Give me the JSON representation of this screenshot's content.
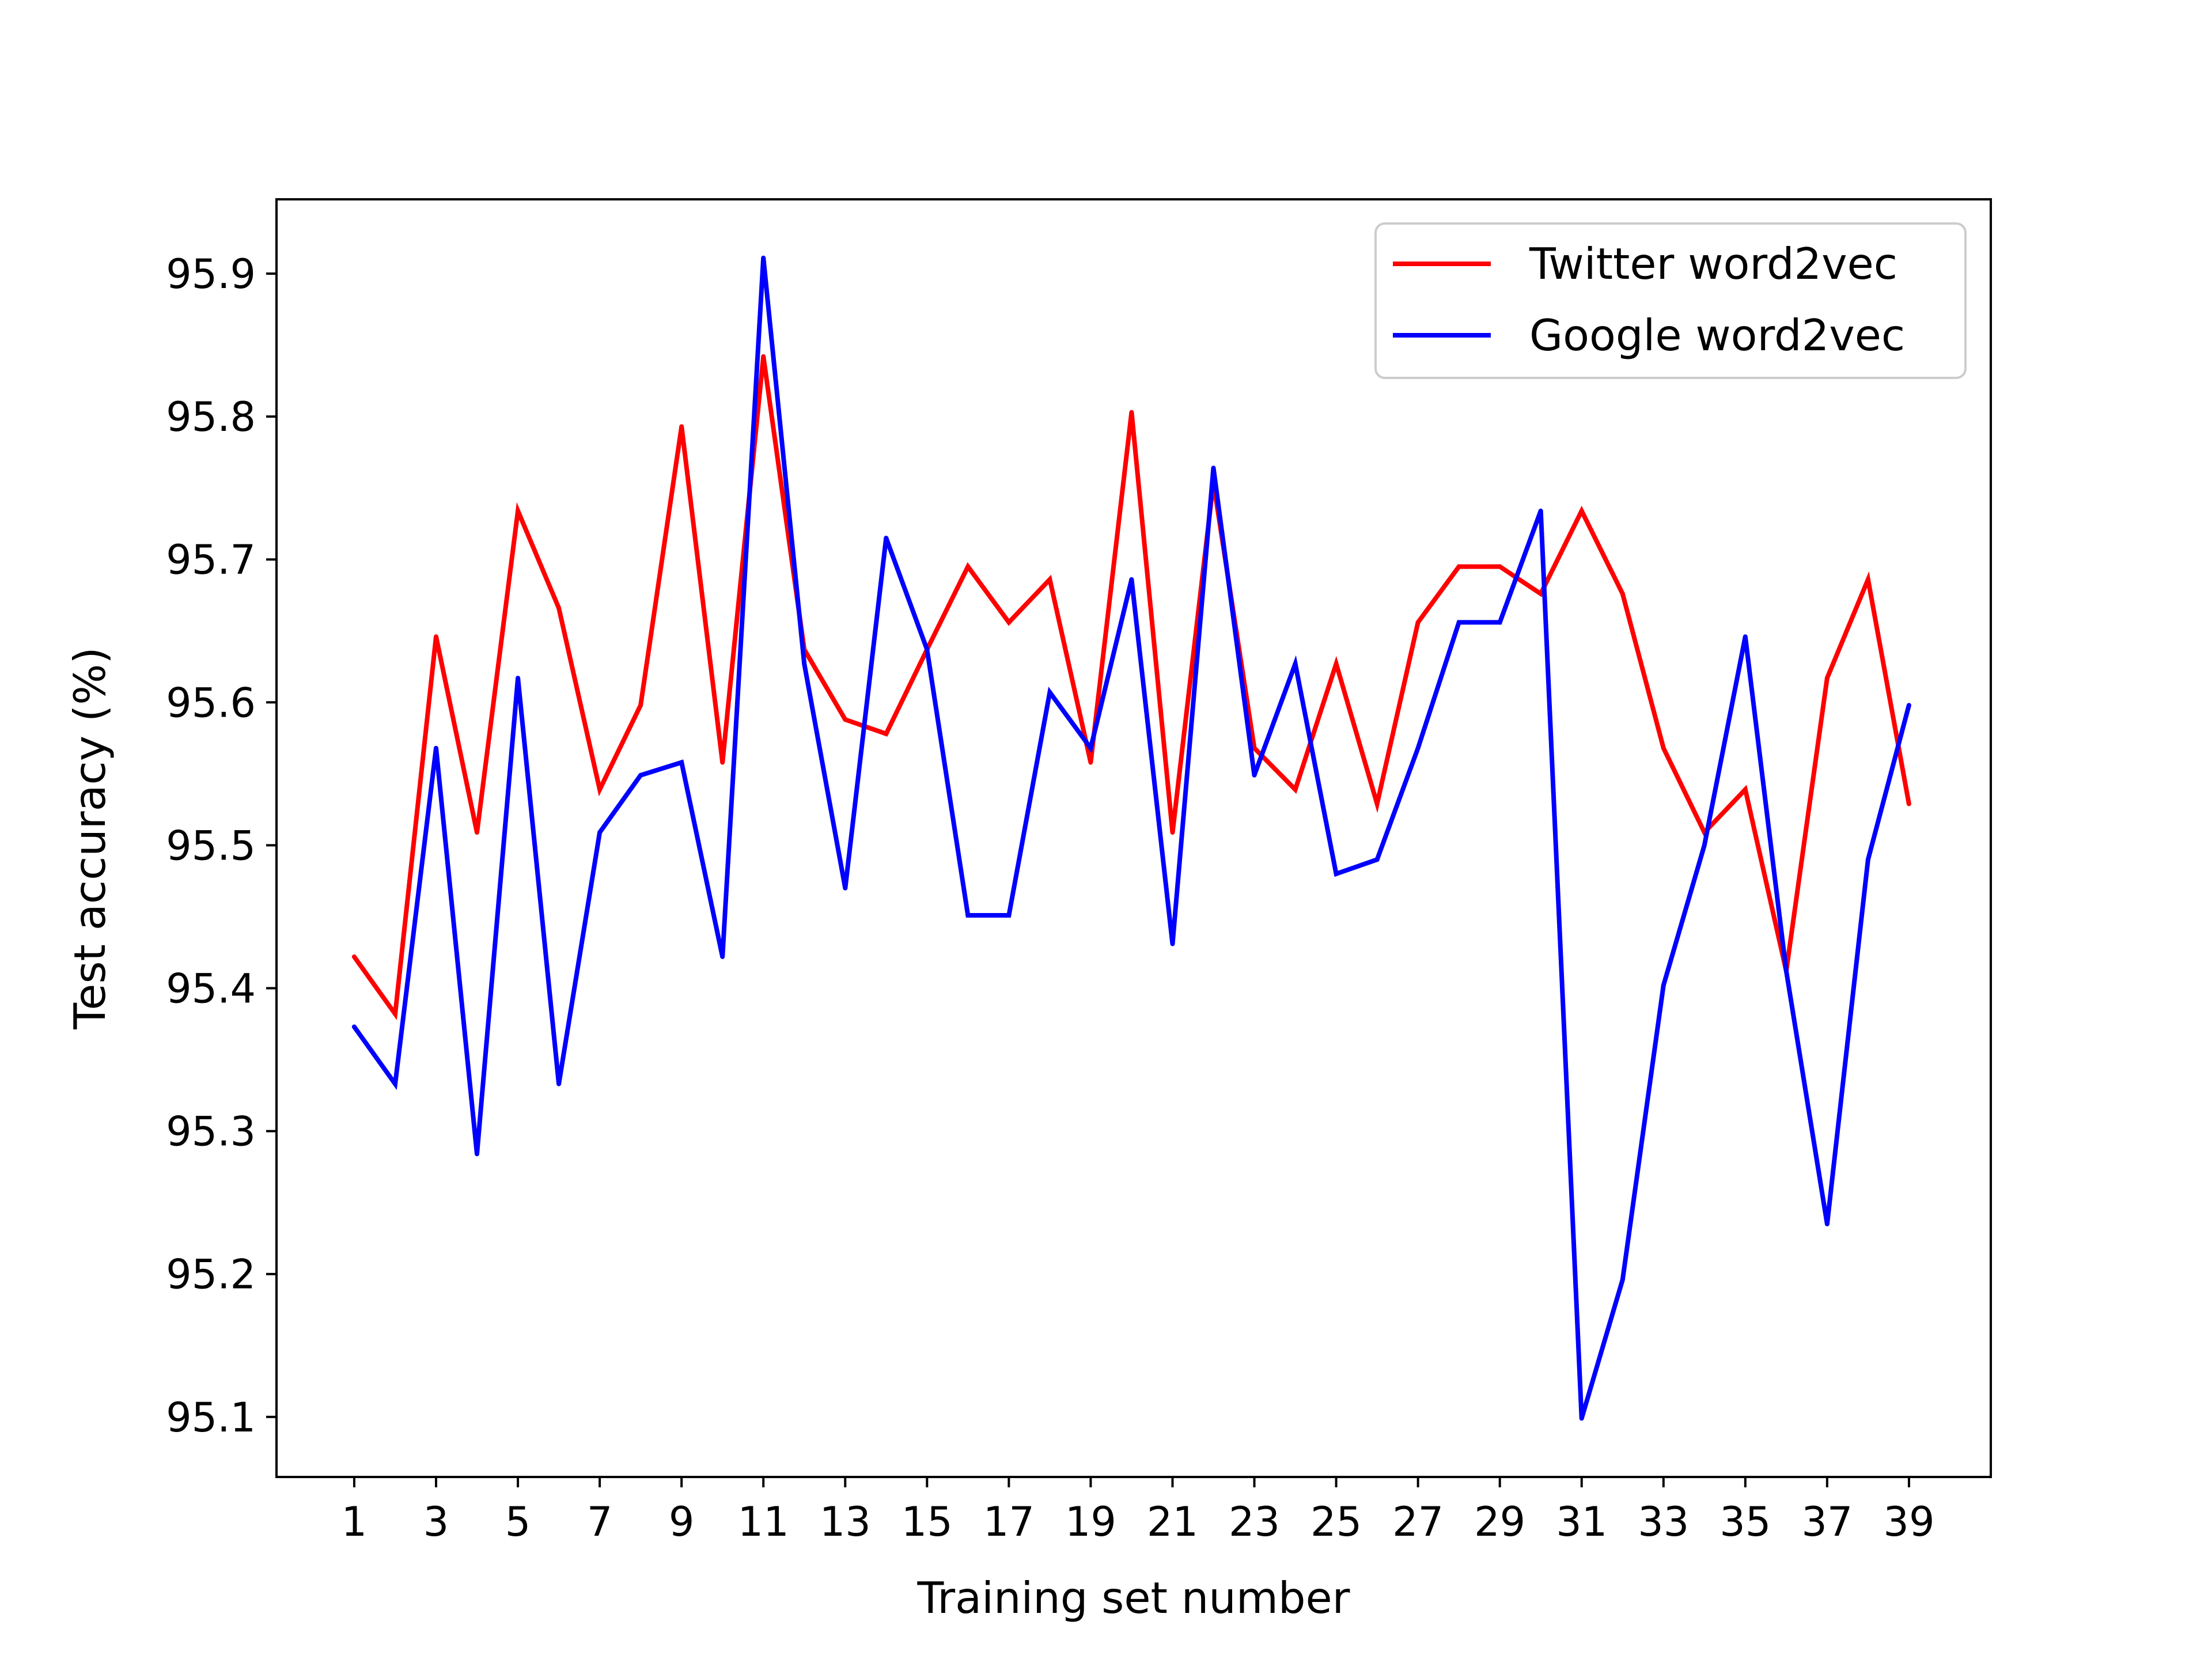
{
  "chart_data": {
    "type": "line",
    "title": "",
    "xlabel": "Training set number",
    "ylabel": "Test accuracy (%)",
    "xlim": [
      -0.9,
      41.0
    ],
    "ylim": [
      95.058,
      95.952
    ],
    "xticks": [
      1,
      3,
      5,
      7,
      9,
      11,
      13,
      15,
      17,
      19,
      21,
      23,
      25,
      27,
      29,
      31,
      33,
      35,
      37,
      39
    ],
    "yticks": [
      95.1,
      95.2,
      95.3,
      95.4,
      95.5,
      95.6,
      95.7,
      95.8,
      95.9
    ],
    "ytick_labels": [
      "95.1",
      "95.2",
      "95.3",
      "95.4",
      "95.5",
      "95.6",
      "95.7",
      "95.8",
      "95.9"
    ],
    "grid": false,
    "legend_position": "top-right",
    "x": [
      1,
      2,
      3,
      4,
      5,
      6,
      7,
      8,
      9,
      10,
      11,
      12,
      13,
      14,
      15,
      16,
      17,
      18,
      19,
      20,
      21,
      22,
      23,
      24,
      25,
      26,
      27,
      28,
      29,
      30,
      31,
      32,
      33,
      34,
      35,
      36,
      37,
      38,
      39
    ],
    "series": [
      {
        "name": "Twitter word2vec",
        "color": "#ff0000",
        "values": [
          95.422,
          95.382,
          95.646,
          95.509,
          95.734,
          95.666,
          95.539,
          95.598,
          95.793,
          95.558,
          95.842,
          95.637,
          95.588,
          95.578,
          95.637,
          95.695,
          95.656,
          95.686,
          95.558,
          95.803,
          95.509,
          95.754,
          95.568,
          95.539,
          95.627,
          95.529,
          95.656,
          95.695,
          95.695,
          95.676,
          95.734,
          95.676,
          95.568,
          95.509,
          95.539,
          95.412,
          95.617,
          95.686,
          95.529
        ]
      },
      {
        "name": "Google word2vec",
        "color": "#0000ff",
        "values": [
          95.373,
          95.333,
          95.568,
          95.284,
          95.617,
          95.333,
          95.509,
          95.549,
          95.558,
          95.422,
          95.911,
          95.627,
          95.47,
          95.715,
          95.637,
          95.451,
          95.451,
          95.607,
          95.568,
          95.686,
          95.431,
          95.764,
          95.549,
          95.627,
          95.48,
          95.49,
          95.568,
          95.656,
          95.656,
          95.734,
          95.099,
          95.196,
          95.402,
          95.5,
          95.646,
          95.412,
          95.235,
          95.49,
          95.598
        ]
      }
    ]
  }
}
